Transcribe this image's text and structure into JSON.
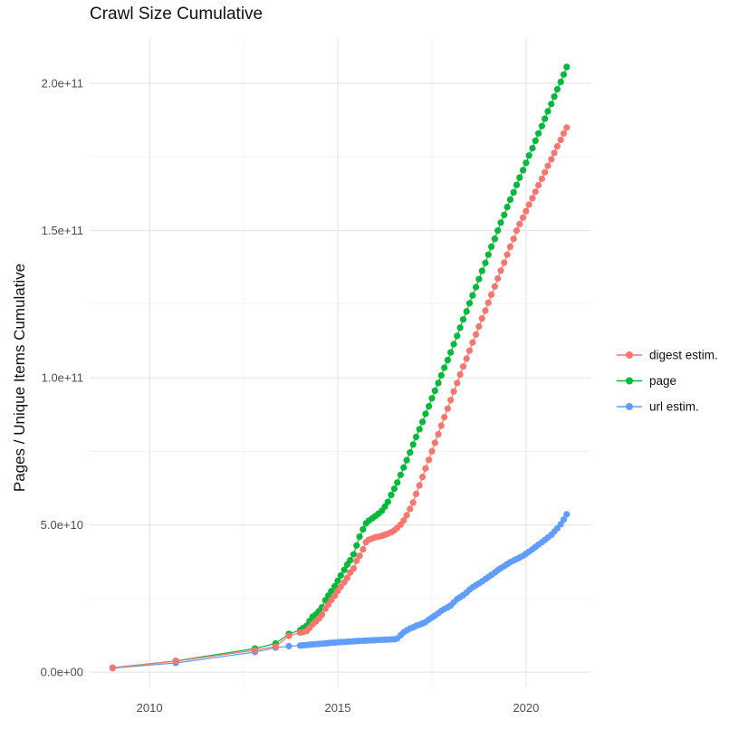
{
  "chart_data": {
    "type": "line",
    "title": "Crawl Size Cumulative",
    "xlabel": "",
    "ylabel": "Pages / Unique Items Cumulative",
    "legend_position": "right",
    "grid": true,
    "value_unit": "pages / unique items, point values are x 1e9",
    "xlim": [
      2008.41,
      2021.71
    ],
    "ylim_e9": [
      -4.9,
      215.4
    ],
    "x_ticks": [
      {
        "value": 2010,
        "label": "2010"
      },
      {
        "value": 2015,
        "label": "2015"
      },
      {
        "value": 2020,
        "label": "2020"
      }
    ],
    "x_minor": [
      2012.5,
      2017.5
    ],
    "y_ticks": [
      {
        "value_e9": 0,
        "label": "0.0e+00"
      },
      {
        "value_e9": 50,
        "label": "5.0e+10"
      },
      {
        "value_e9": 100,
        "label": "1.0e+11"
      },
      {
        "value_e9": 150,
        "label": "1.5e+11"
      },
      {
        "value_e9": 200,
        "label": "2.0e+11"
      }
    ],
    "y_minor_e9": [
      25,
      75,
      125,
      175
    ],
    "colors": {
      "grid_major": "#E7E7E7",
      "grid_minor": "#F1F1F1",
      "tick_text": "#4D4D4D",
      "title_text": "#111111"
    },
    "draw_order": [
      "page",
      "url estim.",
      "digest estim."
    ],
    "series": [
      {
        "id": "digest-estim",
        "name": "digest estim.",
        "color": "#F8766D",
        "points": [
          [
            2009.02,
            1.4
          ],
          [
            2010.7,
            3.7
          ],
          [
            2012.8,
            7.4
          ],
          [
            2013.35,
            8.7
          ],
          [
            2013.7,
            12.3
          ],
          [
            2014.0,
            13.4
          ],
          [
            2014.08,
            13.6
          ],
          [
            2014.17,
            13.9
          ],
          [
            2014.25,
            15.0
          ],
          [
            2014.33,
            16.2
          ],
          [
            2014.42,
            17.2
          ],
          [
            2014.5,
            18.2
          ],
          [
            2014.58,
            19.5
          ],
          [
            2014.67,
            21.5
          ],
          [
            2014.75,
            23.0
          ],
          [
            2014.83,
            24.5
          ],
          [
            2014.92,
            26.0
          ],
          [
            2015.0,
            27.6
          ],
          [
            2015.08,
            29.0
          ],
          [
            2015.17,
            30.5
          ],
          [
            2015.25,
            32.0
          ],
          [
            2015.33,
            33.8
          ],
          [
            2015.42,
            35.2
          ],
          [
            2015.5,
            37.8
          ],
          [
            2015.58,
            39.5
          ],
          [
            2015.67,
            41.7
          ],
          [
            2015.75,
            44.1
          ],
          [
            2015.83,
            45.0
          ],
          [
            2015.92,
            45.4
          ],
          [
            2016.0,
            45.8
          ],
          [
            2016.08,
            46.0
          ],
          [
            2016.17,
            46.3
          ],
          [
            2016.25,
            46.6
          ],
          [
            2016.33,
            47.0
          ],
          [
            2016.42,
            47.5
          ],
          [
            2016.5,
            48.1
          ],
          [
            2016.58,
            49.0
          ],
          [
            2016.67,
            50.1
          ],
          [
            2016.75,
            51.5
          ],
          [
            2016.83,
            53.3
          ],
          [
            2016.92,
            55.4
          ],
          [
            2017.0,
            57.6
          ],
          [
            2017.08,
            60.5
          ],
          [
            2017.17,
            63.4
          ],
          [
            2017.25,
            66.3
          ],
          [
            2017.33,
            69.2
          ],
          [
            2017.42,
            72.1
          ],
          [
            2017.5,
            75.0
          ],
          [
            2017.58,
            77.9
          ],
          [
            2017.67,
            80.8
          ],
          [
            2017.75,
            83.7
          ],
          [
            2017.83,
            86.6
          ],
          [
            2017.92,
            89.5
          ],
          [
            2018.0,
            92.4
          ],
          [
            2018.08,
            95.3
          ],
          [
            2018.17,
            98.2
          ],
          [
            2018.25,
            101.1
          ],
          [
            2018.33,
            103.8
          ],
          [
            2018.42,
            106.5
          ],
          [
            2018.5,
            109.2
          ],
          [
            2018.58,
            112.0
          ],
          [
            2018.67,
            114.7
          ],
          [
            2018.75,
            117.4
          ],
          [
            2018.83,
            120.1
          ],
          [
            2018.92,
            122.8
          ],
          [
            2019.0,
            125.5
          ],
          [
            2019.08,
            128.2
          ],
          [
            2019.17,
            131.0
          ],
          [
            2019.25,
            133.7
          ],
          [
            2019.33,
            136.4
          ],
          [
            2019.42,
            139.1
          ],
          [
            2019.5,
            141.8
          ],
          [
            2019.58,
            144.5
          ],
          [
            2019.67,
            147.2
          ],
          [
            2019.75,
            150.0
          ],
          [
            2019.83,
            152.2
          ],
          [
            2019.92,
            154.4
          ],
          [
            2020.0,
            156.6
          ],
          [
            2020.08,
            158.8
          ],
          [
            2020.17,
            161.0
          ],
          [
            2020.25,
            163.2
          ],
          [
            2020.33,
            165.4
          ],
          [
            2020.42,
            167.6
          ],
          [
            2020.5,
            169.8
          ],
          [
            2020.58,
            172.0
          ],
          [
            2020.67,
            174.2
          ],
          [
            2020.75,
            176.4
          ],
          [
            2020.83,
            178.6
          ],
          [
            2020.92,
            180.8
          ],
          [
            2021.0,
            183.0
          ],
          [
            2021.08,
            185.0
          ]
        ]
      },
      {
        "id": "page",
        "name": "page",
        "color": "#00BA38",
        "points": [
          [
            2009.02,
            1.5
          ],
          [
            2010.7,
            3.8
          ],
          [
            2012.8,
            8.0
          ],
          [
            2013.35,
            9.7
          ],
          [
            2013.7,
            13.0
          ],
          [
            2014.0,
            14.2
          ],
          [
            2014.08,
            15.0
          ],
          [
            2014.17,
            15.7
          ],
          [
            2014.25,
            17.3
          ],
          [
            2014.33,
            18.8
          ],
          [
            2014.42,
            19.6
          ],
          [
            2014.5,
            20.7
          ],
          [
            2014.58,
            22.0
          ],
          [
            2014.67,
            24.4
          ],
          [
            2014.75,
            26.0
          ],
          [
            2014.83,
            27.5
          ],
          [
            2014.92,
            29.2
          ],
          [
            2015.0,
            31.0
          ],
          [
            2015.08,
            32.8
          ],
          [
            2015.17,
            34.7
          ],
          [
            2015.25,
            36.5
          ],
          [
            2015.33,
            38.0
          ],
          [
            2015.42,
            40.0
          ],
          [
            2015.5,
            43.0
          ],
          [
            2015.58,
            46.0
          ],
          [
            2015.67,
            48.5
          ],
          [
            2015.75,
            50.5
          ],
          [
            2015.83,
            51.5
          ],
          [
            2015.92,
            52.3
          ],
          [
            2016.0,
            53.0
          ],
          [
            2016.08,
            53.8
          ],
          [
            2016.17,
            54.8
          ],
          [
            2016.25,
            56.2
          ],
          [
            2016.33,
            57.8
          ],
          [
            2016.42,
            60.2
          ],
          [
            2016.5,
            62.3
          ],
          [
            2016.58,
            64.4
          ],
          [
            2016.67,
            67.0
          ],
          [
            2016.75,
            69.5
          ],
          [
            2016.83,
            72.0
          ],
          [
            2016.92,
            74.6
          ],
          [
            2017.0,
            77.3
          ],
          [
            2017.08,
            79.9
          ],
          [
            2017.17,
            82.5
          ],
          [
            2017.25,
            85.0
          ],
          [
            2017.33,
            87.7
          ],
          [
            2017.42,
            90.3
          ],
          [
            2017.5,
            93.0
          ],
          [
            2017.58,
            95.6
          ],
          [
            2017.67,
            98.2
          ],
          [
            2017.75,
            100.8
          ],
          [
            2017.83,
            103.4
          ],
          [
            2017.92,
            106.0
          ],
          [
            2018.0,
            108.6
          ],
          [
            2018.08,
            111.4
          ],
          [
            2018.17,
            114.2
          ],
          [
            2018.25,
            117.0
          ],
          [
            2018.33,
            119.8
          ],
          [
            2018.42,
            122.5
          ],
          [
            2018.5,
            125.3
          ],
          [
            2018.58,
            128.0
          ],
          [
            2018.67,
            130.8
          ],
          [
            2018.75,
            133.5
          ],
          [
            2018.83,
            136.3
          ],
          [
            2018.92,
            139.0
          ],
          [
            2019.0,
            141.8
          ],
          [
            2019.08,
            144.5
          ],
          [
            2019.17,
            147.2
          ],
          [
            2019.25,
            150.0
          ],
          [
            2019.33,
            152.7
          ],
          [
            2019.42,
            155.3
          ],
          [
            2019.5,
            158.0
          ],
          [
            2019.58,
            160.5
          ],
          [
            2019.67,
            163.0
          ],
          [
            2019.75,
            165.5
          ],
          [
            2019.83,
            168.0
          ],
          [
            2019.92,
            170.5
          ],
          [
            2020.0,
            173.0
          ],
          [
            2020.08,
            175.5
          ],
          [
            2020.17,
            178.0
          ],
          [
            2020.25,
            180.5
          ],
          [
            2020.33,
            183.0
          ],
          [
            2020.42,
            185.5
          ],
          [
            2020.5,
            188.0
          ],
          [
            2020.58,
            190.5
          ],
          [
            2020.67,
            193.0
          ],
          [
            2020.75,
            195.5
          ],
          [
            2020.83,
            198.0
          ],
          [
            2020.92,
            200.5
          ],
          [
            2021.0,
            203.0
          ],
          [
            2021.08,
            205.6
          ]
        ]
      },
      {
        "id": "url-estim",
        "name": "url estim.",
        "color": "#619CFF",
        "points": [
          [
            2009.02,
            1.3
          ],
          [
            2010.7,
            3.1
          ],
          [
            2012.8,
            6.8
          ],
          [
            2013.35,
            8.3
          ],
          [
            2013.7,
            8.8
          ],
          [
            2014.0,
            9.0
          ],
          [
            2014.08,
            9.1
          ],
          [
            2014.17,
            9.2
          ],
          [
            2014.25,
            9.3
          ],
          [
            2014.33,
            9.4
          ],
          [
            2014.42,
            9.5
          ],
          [
            2014.5,
            9.55
          ],
          [
            2014.58,
            9.65
          ],
          [
            2014.67,
            9.75
          ],
          [
            2014.75,
            9.85
          ],
          [
            2014.83,
            9.95
          ],
          [
            2014.92,
            10.0
          ],
          [
            2015.0,
            10.1
          ],
          [
            2015.08,
            10.2
          ],
          [
            2015.17,
            10.25
          ],
          [
            2015.25,
            10.3
          ],
          [
            2015.33,
            10.4
          ],
          [
            2015.42,
            10.45
          ],
          [
            2015.5,
            10.5
          ],
          [
            2015.58,
            10.6
          ],
          [
            2015.67,
            10.65
          ],
          [
            2015.75,
            10.7
          ],
          [
            2015.83,
            10.75
          ],
          [
            2015.92,
            10.8
          ],
          [
            2016.0,
            10.85
          ],
          [
            2016.08,
            10.9
          ],
          [
            2016.17,
            10.95
          ],
          [
            2016.25,
            11.0
          ],
          [
            2016.33,
            11.05
          ],
          [
            2016.42,
            11.1
          ],
          [
            2016.5,
            11.15
          ],
          [
            2016.58,
            11.4
          ],
          [
            2016.67,
            12.5
          ],
          [
            2016.75,
            13.5
          ],
          [
            2016.83,
            14.2
          ],
          [
            2016.92,
            14.8
          ],
          [
            2017.0,
            15.2
          ],
          [
            2017.08,
            15.7
          ],
          [
            2017.17,
            16.1
          ],
          [
            2017.25,
            16.5
          ],
          [
            2017.33,
            17.0
          ],
          [
            2017.42,
            17.8
          ],
          [
            2017.5,
            18.5
          ],
          [
            2017.58,
            19.2
          ],
          [
            2017.67,
            20.0
          ],
          [
            2017.75,
            20.8
          ],
          [
            2017.83,
            21.4
          ],
          [
            2017.92,
            22.0
          ],
          [
            2018.0,
            22.6
          ],
          [
            2018.08,
            23.7
          ],
          [
            2018.17,
            24.8
          ],
          [
            2018.25,
            25.4
          ],
          [
            2018.33,
            26.1
          ],
          [
            2018.42,
            27.0
          ],
          [
            2018.5,
            28.0
          ],
          [
            2018.58,
            28.8
          ],
          [
            2018.67,
            29.5
          ],
          [
            2018.75,
            30.1
          ],
          [
            2018.83,
            30.8
          ],
          [
            2018.92,
            31.6
          ],
          [
            2019.0,
            32.3
          ],
          [
            2019.08,
            33.0
          ],
          [
            2019.17,
            33.8
          ],
          [
            2019.25,
            34.6
          ],
          [
            2019.33,
            35.3
          ],
          [
            2019.42,
            36.0
          ],
          [
            2019.5,
            36.7
          ],
          [
            2019.58,
            37.3
          ],
          [
            2019.67,
            37.9
          ],
          [
            2019.75,
            38.4
          ],
          [
            2019.83,
            38.9
          ],
          [
            2019.92,
            39.5
          ],
          [
            2020.0,
            40.2
          ],
          [
            2020.08,
            40.9
          ],
          [
            2020.17,
            41.7
          ],
          [
            2020.25,
            42.5
          ],
          [
            2020.33,
            43.3
          ],
          [
            2020.42,
            44.1
          ],
          [
            2020.5,
            44.9
          ],
          [
            2020.58,
            45.7
          ],
          [
            2020.67,
            46.6
          ],
          [
            2020.75,
            47.7
          ],
          [
            2020.83,
            48.8
          ],
          [
            2020.92,
            50.2
          ],
          [
            2021.0,
            51.8
          ],
          [
            2021.08,
            53.6
          ]
        ]
      }
    ]
  }
}
